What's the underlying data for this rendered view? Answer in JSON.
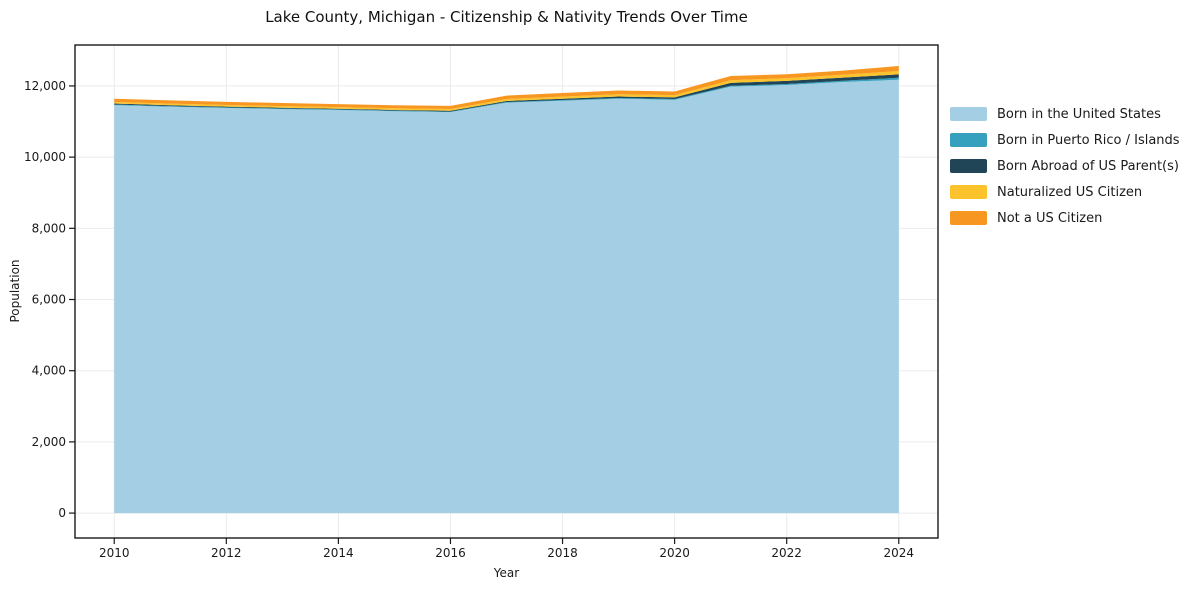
{
  "title": "Lake County, Michigan - Citizenship & Nativity Trends Over Time",
  "chart_data": {
    "type": "area",
    "stacked": true,
    "title": "Lake County, Michigan - Citizenship & Nativity Trends Over Time",
    "xlabel": "Year",
    "ylabel": "Population",
    "x": [
      2010,
      2011,
      2012,
      2013,
      2014,
      2015,
      2016,
      2017,
      2018,
      2019,
      2020,
      2021,
      2022,
      2023,
      2024
    ],
    "series": [
      {
        "name": "Born in the United States",
        "color": "#a4cee3",
        "values": [
          11460,
          11415,
          11380,
          11350,
          11325,
          11290,
          11265,
          11530,
          11585,
          11640,
          11610,
          11980,
          12025,
          12110,
          12175
        ]
      },
      {
        "name": "Born in Puerto Rico / Islands",
        "color": "#36a1be",
        "values": [
          20,
          18,
          18,
          15,
          15,
          15,
          15,
          18,
          20,
          22,
          22,
          25,
          28,
          35,
          55
        ]
      },
      {
        "name": "Born Abroad of US Parent(s)",
        "color": "#1f4557",
        "values": [
          25,
          25,
          22,
          22,
          20,
          20,
          22,
          30,
          35,
          40,
          45,
          80,
          90,
          90,
          95
        ]
      },
      {
        "name": "Naturalized US Citizen",
        "color": "#fcc32d",
        "values": [
          45,
          45,
          45,
          45,
          45,
          48,
          50,
          55,
          60,
          65,
          65,
          75,
          75,
          80,
          95
        ]
      },
      {
        "name": "Not a US Citizen",
        "color": "#f79722",
        "values": [
          90,
          90,
          88,
          88,
          85,
          85,
          88,
          95,
          100,
          105,
          100,
          120,
          110,
          115,
          140
        ]
      }
    ],
    "totals": [
      11640,
      11593,
      11553,
      11520,
      11490,
      11458,
      11440,
      11728,
      11800,
      11872,
      11842,
      12280,
      12328,
      12430,
      12560
    ],
    "xticks": [
      2010,
      2012,
      2014,
      2016,
      2018,
      2020,
      2022,
      2024
    ],
    "xtick_labels": [
      "2010",
      "2012",
      "2014",
      "2016",
      "2018",
      "2020",
      "2022",
      "2024"
    ],
    "yticks": [
      0,
      2000,
      4000,
      6000,
      8000,
      10000,
      12000
    ],
    "ytick_labels": [
      "0",
      "2,000",
      "4,000",
      "6,000",
      "8,000",
      "10,000",
      "12,000"
    ],
    "xlim": [
      2009.3,
      2024.7
    ],
    "ylim": [
      -700,
      13150
    ],
    "grid": true,
    "legend_position": "right",
    "frame_color": "#1a1a1a",
    "grid_color": "#ebebeb",
    "background_color": "#ffffff"
  }
}
